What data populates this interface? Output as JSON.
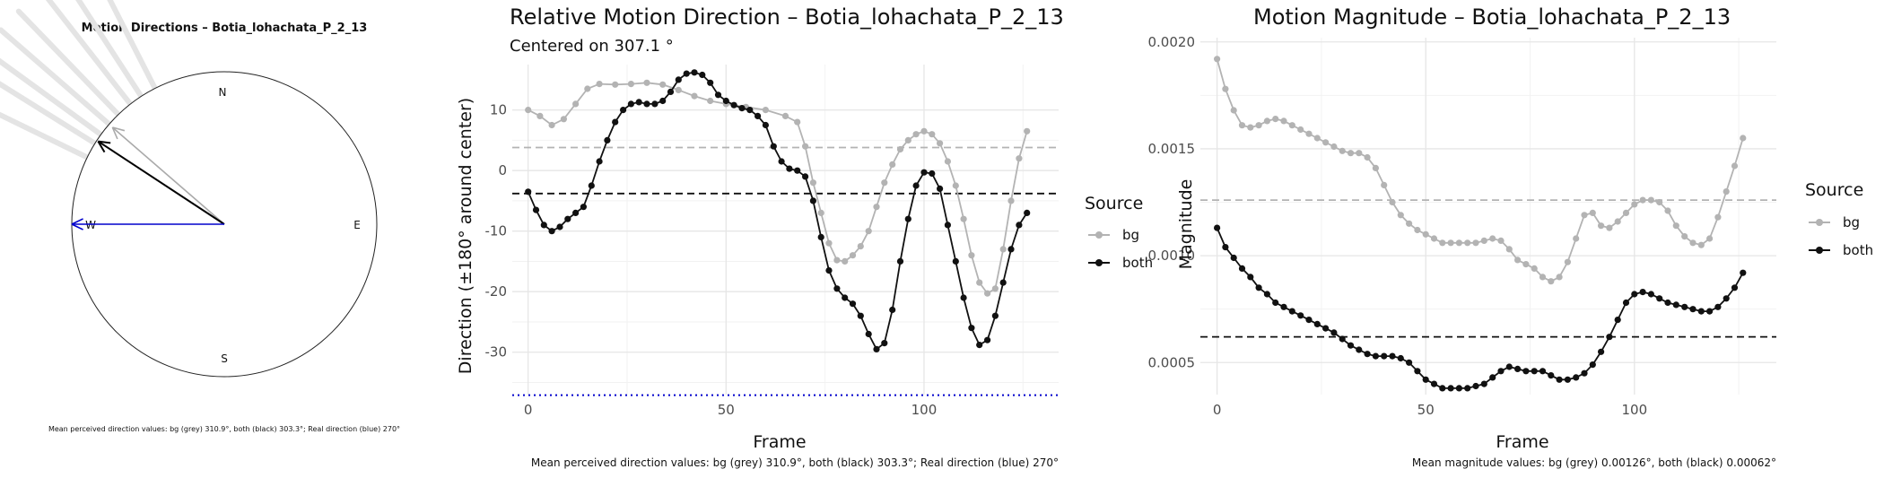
{
  "compass": {
    "title": "Motion Directions – Botia_lohachata_P_2_13",
    "labels": {
      "n": "N",
      "e": "E",
      "s": "S",
      "w": "W"
    },
    "caption": "Mean perceived direction values: bg (grey) 310.9°, both (black) 303.3°; Real direction (blue) 270°",
    "arrows": [
      {
        "name": "bg",
        "angle_deg": 310.9,
        "color": "#aaaaaa"
      },
      {
        "name": "both",
        "angle_deg": 303.3,
        "color": "#000000"
      },
      {
        "name": "real",
        "angle_deg": 270,
        "color": "#0000cc"
      }
    ]
  },
  "direction_chart": {
    "title": "Relative Motion Direction – Botia_lohachata_P_2_13",
    "subtitle": "Centered on  307.1 °",
    "caption": "Mean perceived direction values: bg (grey) 310.9°, both (black) 303.3°; Real direction (blue) 270°"
  },
  "magnitude_chart": {
    "title": "Motion Magnitude – Botia_lohachata_P_2_13",
    "caption": "Mean magnitude values: bg (grey) 0.00126°, both (black) 0.00062°"
  },
  "legend": {
    "title": "Source",
    "items": [
      {
        "label": "bg",
        "color": "#b3b3b3"
      },
      {
        "label": "both",
        "color": "#111111"
      }
    ]
  },
  "colors": {
    "bg": "#b3b3b3",
    "both": "#111111",
    "real": "#0000cc"
  },
  "chart_data": [
    {
      "type": "line",
      "title": "Relative Motion Direction – Botia_lohachata_P_2_13",
      "subtitle": "Centered on  307.1 °",
      "xlabel": "Frame",
      "ylabel": "Direction (±180° around center)",
      "xlim": [
        -4,
        134
      ],
      "ylim": [
        -37,
        17.5
      ],
      "xticks": [
        0,
        50,
        100
      ],
      "yticks": [
        -30,
        -20,
        -10,
        0,
        10
      ],
      "grid": true,
      "legend_position": "right",
      "hlines": [
        {
          "series": "bg",
          "value": 3.8,
          "style": "dashed"
        },
        {
          "series": "both",
          "value": -3.8,
          "style": "dashed"
        },
        {
          "series": "real",
          "value": -37.1,
          "style": "dotted"
        }
      ],
      "series": [
        {
          "name": "bg",
          "points": [
            [
              0,
              10
            ],
            [
              3,
              9
            ],
            [
              6,
              7.5
            ],
            [
              9,
              8.5
            ],
            [
              12,
              11
            ],
            [
              15,
              13.5
            ],
            [
              18,
              14.3
            ],
            [
              22,
              14.2
            ],
            [
              26,
              14.3
            ],
            [
              30,
              14.5
            ],
            [
              34,
              14.2
            ],
            [
              38,
              13.3
            ],
            [
              42,
              12.3
            ],
            [
              46,
              11.5
            ],
            [
              50,
              11
            ],
            [
              55,
              10.5
            ],
            [
              60,
              10
            ],
            [
              65,
              9
            ],
            [
              68,
              8
            ],
            [
              70,
              4
            ],
            [
              72,
              -2
            ],
            [
              74,
              -7
            ],
            [
              76,
              -12
            ],
            [
              78,
              -14.8
            ],
            [
              80,
              -15
            ],
            [
              82,
              -14
            ],
            [
              84,
              -12.5
            ],
            [
              86,
              -10
            ],
            [
              88,
              -6
            ],
            [
              90,
              -2
            ],
            [
              92,
              1
            ],
            [
              94,
              3.5
            ],
            [
              96,
              5
            ],
            [
              98,
              6
            ],
            [
              100,
              6.5
            ],
            [
              102,
              6
            ],
            [
              104,
              4.5
            ],
            [
              106,
              1.5
            ],
            [
              108,
              -2.5
            ],
            [
              110,
              -8
            ],
            [
              112,
              -14
            ],
            [
              114,
              -18.5
            ],
            [
              116,
              -20.3
            ],
            [
              118,
              -19.5
            ],
            [
              120,
              -13
            ],
            [
              122,
              -5
            ],
            [
              124,
              2
            ],
            [
              126,
              6.5
            ]
          ]
        },
        {
          "name": "both",
          "points": [
            [
              0,
              -3.5
            ],
            [
              2,
              -6.5
            ],
            [
              4,
              -9
            ],
            [
              6,
              -10
            ],
            [
              8,
              -9.3
            ],
            [
              10,
              -8
            ],
            [
              12,
              -7
            ],
            [
              14,
              -6
            ],
            [
              16,
              -2.5
            ],
            [
              18,
              1.5
            ],
            [
              20,
              5
            ],
            [
              22,
              8
            ],
            [
              24,
              10
            ],
            [
              26,
              11
            ],
            [
              28,
              11.3
            ],
            [
              30,
              11
            ],
            [
              32,
              11
            ],
            [
              34,
              11.5
            ],
            [
              36,
              13
            ],
            [
              38,
              15
            ],
            [
              40,
              16
            ],
            [
              42,
              16.2
            ],
            [
              44,
              15.8
            ],
            [
              46,
              14.5
            ],
            [
              48,
              12.5
            ],
            [
              50,
              11.5
            ],
            [
              52,
              10.8
            ],
            [
              54,
              10.3
            ],
            [
              56,
              10
            ],
            [
              58,
              9
            ],
            [
              60,
              7.5
            ],
            [
              62,
              4
            ],
            [
              64,
              1.5
            ],
            [
              66,
              0.3
            ],
            [
              68,
              0
            ],
            [
              70,
              -1
            ],
            [
              72,
              -5
            ],
            [
              74,
              -11
            ],
            [
              76,
              -16.5
            ],
            [
              78,
              -19.5
            ],
            [
              80,
              -21
            ],
            [
              82,
              -22
            ],
            [
              84,
              -24
            ],
            [
              86,
              -27
            ],
            [
              88,
              -29.5
            ],
            [
              90,
              -28.5
            ],
            [
              92,
              -23
            ],
            [
              94,
              -15
            ],
            [
              96,
              -8
            ],
            [
              98,
              -2.5
            ],
            [
              100,
              -0.3
            ],
            [
              102,
              -0.5
            ],
            [
              104,
              -3
            ],
            [
              106,
              -9
            ],
            [
              108,
              -15
            ],
            [
              110,
              -21
            ],
            [
              112,
              -26
            ],
            [
              114,
              -28.8
            ],
            [
              116,
              -28
            ],
            [
              118,
              -24
            ],
            [
              120,
              -18.5
            ],
            [
              122,
              -13
            ],
            [
              124,
              -9
            ],
            [
              126,
              -7
            ]
          ]
        }
      ]
    },
    {
      "type": "line",
      "title": "Motion Magnitude – Botia_lohachata_P_2_13",
      "xlabel": "Frame",
      "ylabel": "Magnitude",
      "xlim": [
        -4,
        134
      ],
      "ylim": [
        0.00035,
        0.00202
      ],
      "xticks": [
        0,
        50,
        100
      ],
      "yticks": [
        0.0005,
        0.001,
        0.0015,
        0.002
      ],
      "grid": true,
      "legend_position": "right",
      "hlines": [
        {
          "series": "bg",
          "value": 0.00126,
          "style": "dashed"
        },
        {
          "series": "both",
          "value": 0.00062,
          "style": "dashed"
        }
      ],
      "series": [
        {
          "name": "bg",
          "points": [
            [
              0,
              0.00192
            ],
            [
              2,
              0.00178
            ],
            [
              4,
              0.00168
            ],
            [
              6,
              0.00161
            ],
            [
              8,
              0.0016
            ],
            [
              10,
              0.00161
            ],
            [
              12,
              0.00163
            ],
            [
              14,
              0.00164
            ],
            [
              16,
              0.00163
            ],
            [
              18,
              0.00161
            ],
            [
              20,
              0.00159
            ],
            [
              22,
              0.00157
            ],
            [
              24,
              0.00155
            ],
            [
              26,
              0.00153
            ],
            [
              28,
              0.00151
            ],
            [
              30,
              0.00149
            ],
            [
              32,
              0.00148
            ],
            [
              34,
              0.00148
            ],
            [
              36,
              0.00146
            ],
            [
              38,
              0.00141
            ],
            [
              40,
              0.00133
            ],
            [
              42,
              0.00125
            ],
            [
              44,
              0.00119
            ],
            [
              46,
              0.00115
            ],
            [
              48,
              0.00112
            ],
            [
              50,
              0.0011
            ],
            [
              52,
              0.00108
            ],
            [
              54,
              0.00106
            ],
            [
              56,
              0.00106
            ],
            [
              58,
              0.00106
            ],
            [
              60,
              0.00106
            ],
            [
              62,
              0.00106
            ],
            [
              64,
              0.00107
            ],
            [
              66,
              0.00108
            ],
            [
              68,
              0.00107
            ],
            [
              70,
              0.00103
            ],
            [
              72,
              0.00098
            ],
            [
              74,
              0.00096
            ],
            [
              76,
              0.00094
            ],
            [
              78,
              0.0009
            ],
            [
              80,
              0.00088
            ],
            [
              82,
              0.0009
            ],
            [
              84,
              0.00097
            ],
            [
              86,
              0.00108
            ],
            [
              88,
              0.00119
            ],
            [
              90,
              0.0012
            ],
            [
              92,
              0.00114
            ],
            [
              94,
              0.00113
            ],
            [
              96,
              0.00116
            ],
            [
              98,
              0.0012
            ],
            [
              100,
              0.00124
            ],
            [
              102,
              0.00126
            ],
            [
              104,
              0.00126
            ],
            [
              106,
              0.00125
            ],
            [
              108,
              0.00121
            ],
            [
              110,
              0.00114
            ],
            [
              112,
              0.00109
            ],
            [
              114,
              0.00106
            ],
            [
              116,
              0.00105
            ],
            [
              118,
              0.00108
            ],
            [
              120,
              0.00118
            ],
            [
              122,
              0.0013
            ],
            [
              124,
              0.00142
            ],
            [
              126,
              0.00155
            ]
          ]
        },
        {
          "name": "both",
          "points": [
            [
              0,
              0.00113
            ],
            [
              2,
              0.00104
            ],
            [
              4,
              0.00099
            ],
            [
              6,
              0.00094
            ],
            [
              8,
              0.0009
            ],
            [
              10,
              0.00085
            ],
            [
              12,
              0.00082
            ],
            [
              14,
              0.00078
            ],
            [
              16,
              0.00076
            ],
            [
              18,
              0.00074
            ],
            [
              20,
              0.00072
            ],
            [
              22,
              0.0007
            ],
            [
              24,
              0.00068
            ],
            [
              26,
              0.00066
            ],
            [
              28,
              0.00064
            ],
            [
              30,
              0.00061
            ],
            [
              32,
              0.00058
            ],
            [
              34,
              0.00056
            ],
            [
              36,
              0.00054
            ],
            [
              38,
              0.00053
            ],
            [
              40,
              0.00053
            ],
            [
              42,
              0.00053
            ],
            [
              44,
              0.00052
            ],
            [
              46,
              0.0005
            ],
            [
              48,
              0.00046
            ],
            [
              50,
              0.00042
            ],
            [
              52,
              0.0004
            ],
            [
              54,
              0.00038
            ],
            [
              56,
              0.00038
            ],
            [
              58,
              0.00038
            ],
            [
              60,
              0.00038
            ],
            [
              62,
              0.00039
            ],
            [
              64,
              0.0004
            ],
            [
              66,
              0.00043
            ],
            [
              68,
              0.00046
            ],
            [
              70,
              0.00048
            ],
            [
              72,
              0.00047
            ],
            [
              74,
              0.00046
            ],
            [
              76,
              0.00046
            ],
            [
              78,
              0.00046
            ],
            [
              80,
              0.00044
            ],
            [
              82,
              0.00042
            ],
            [
              84,
              0.00042
            ],
            [
              86,
              0.00043
            ],
            [
              88,
              0.00045
            ],
            [
              90,
              0.00049
            ],
            [
              92,
              0.00055
            ],
            [
              94,
              0.00062
            ],
            [
              96,
              0.0007
            ],
            [
              98,
              0.00078
            ],
            [
              100,
              0.00082
            ],
            [
              102,
              0.00083
            ],
            [
              104,
              0.00082
            ],
            [
              106,
              0.0008
            ],
            [
              108,
              0.00078
            ],
            [
              110,
              0.00077
            ],
            [
              112,
              0.00076
            ],
            [
              114,
              0.00075
            ],
            [
              116,
              0.00074
            ],
            [
              118,
              0.00074
            ],
            [
              120,
              0.00076
            ],
            [
              122,
              0.0008
            ],
            [
              124,
              0.00085
            ],
            [
              126,
              0.00092
            ]
          ]
        }
      ]
    }
  ]
}
